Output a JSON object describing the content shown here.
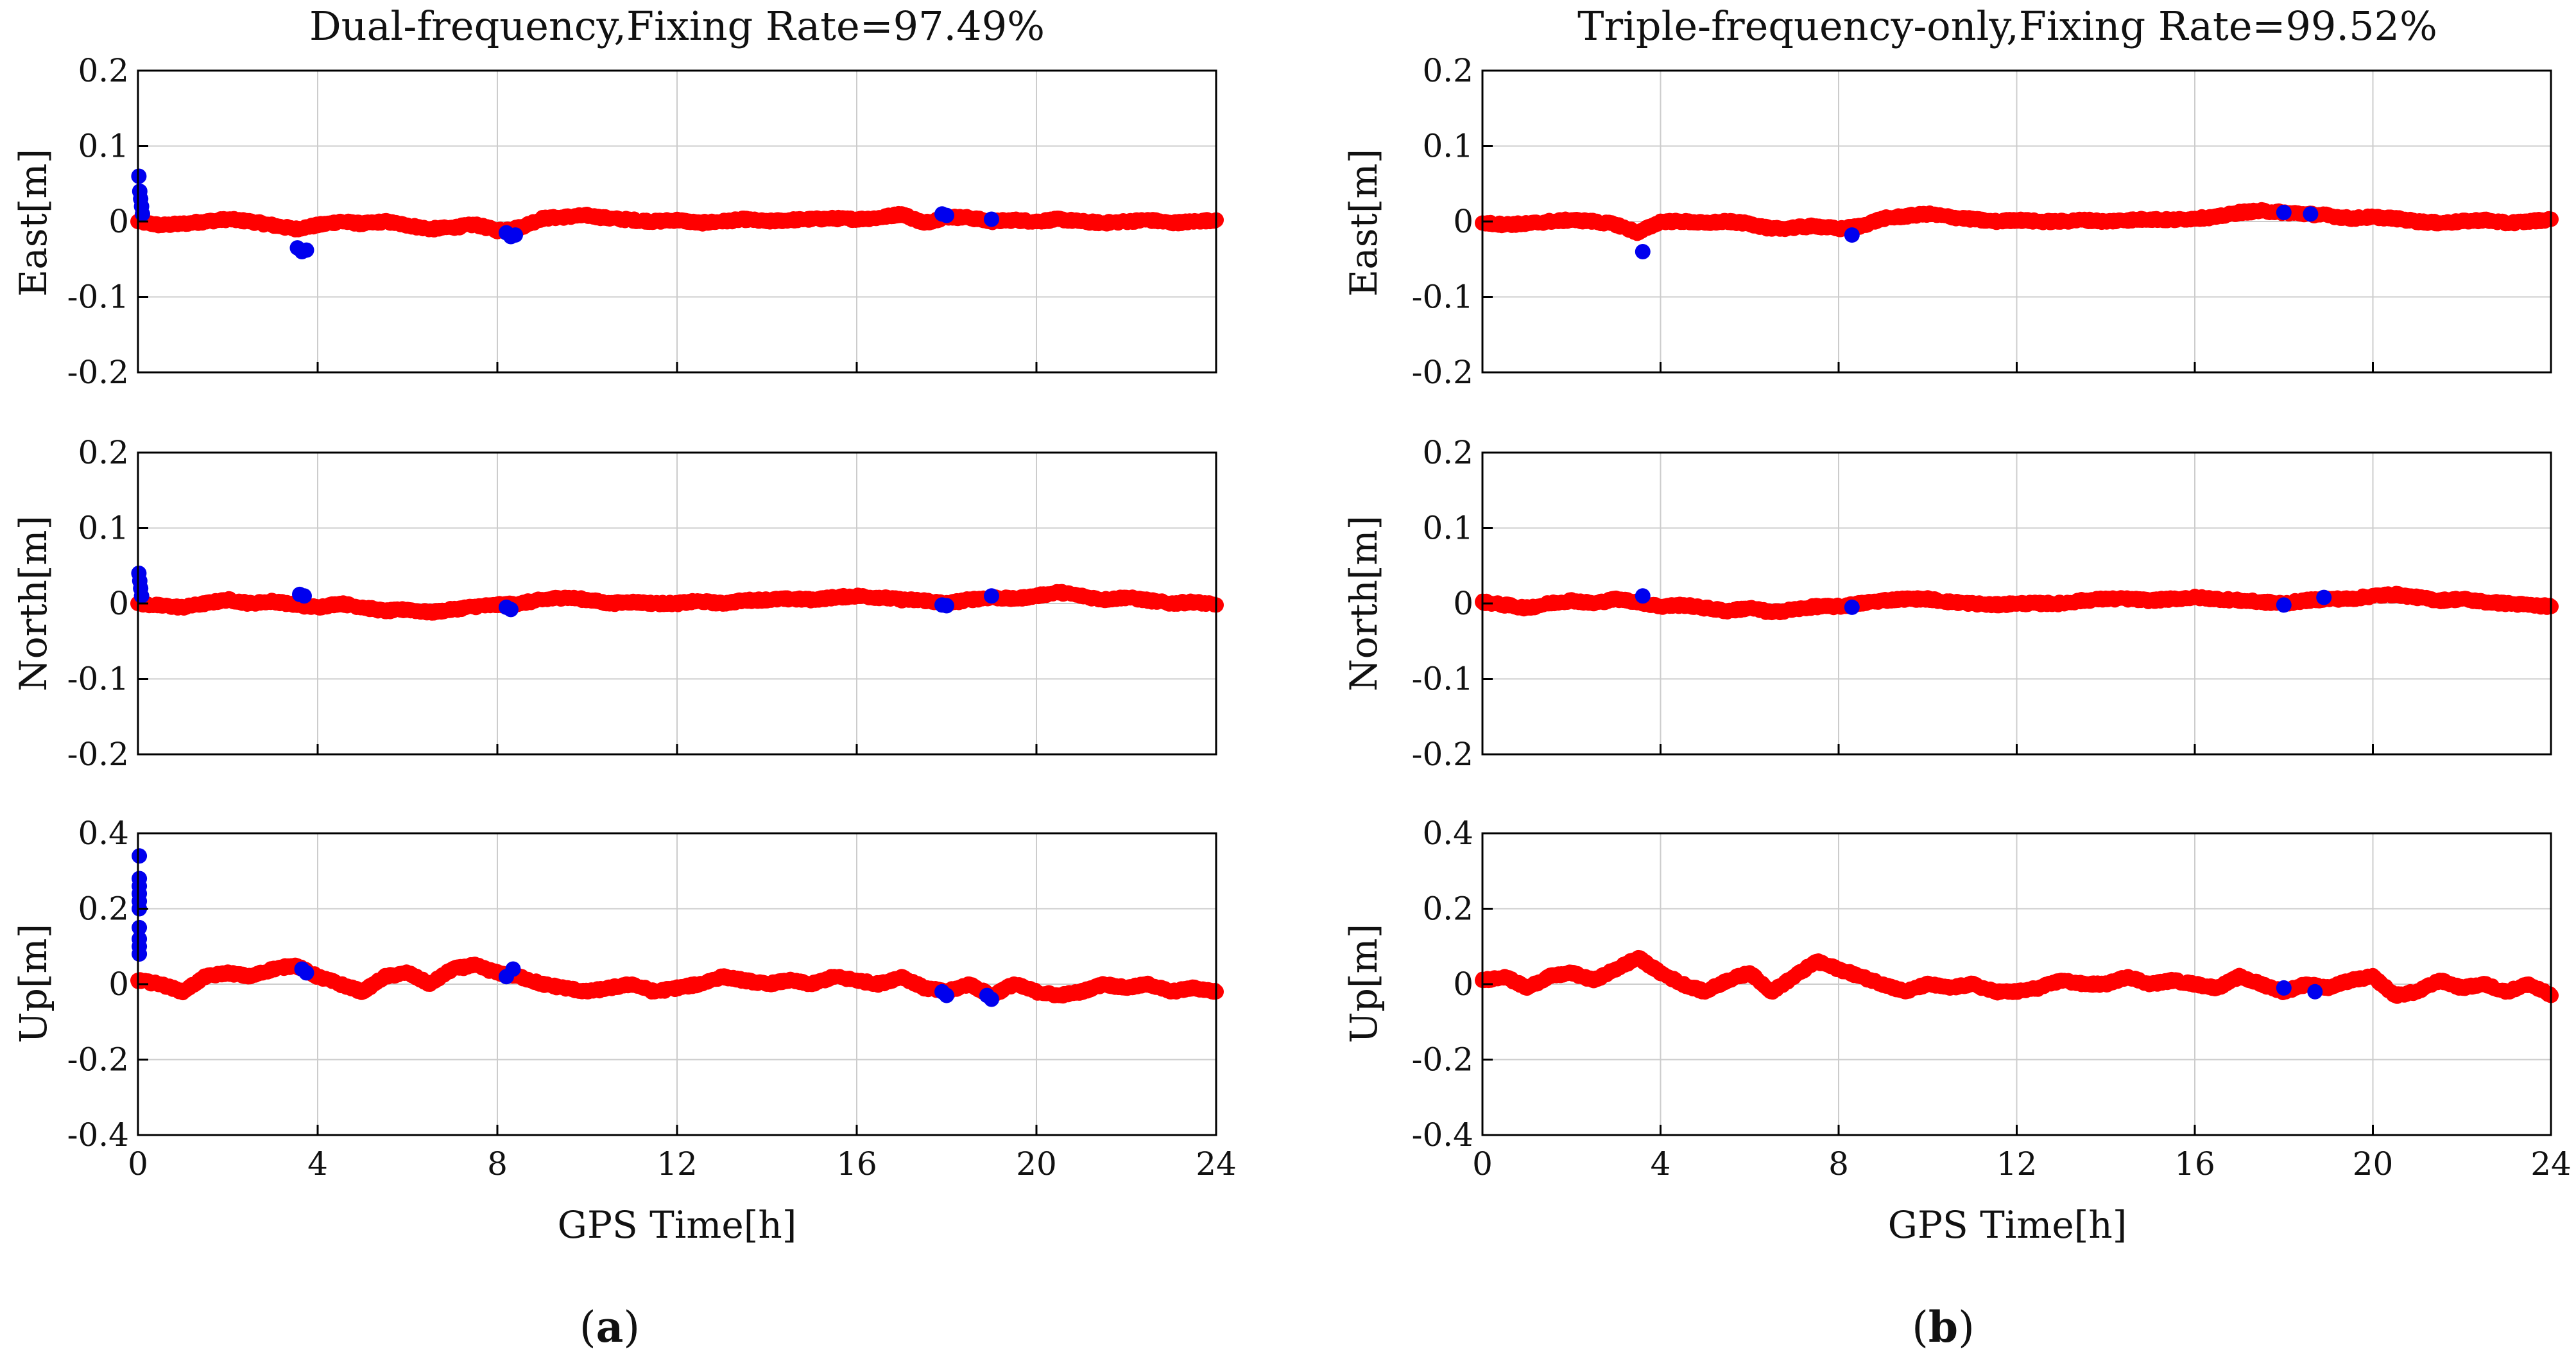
{
  "colors": {
    "fixed": "#ff0000",
    "float": "#0000ee",
    "grid": "#cccccc",
    "axis": "#000000"
  },
  "panels": [
    {
      "title": "Dual-frequency,Fixing Rate=97.49%",
      "label_prefix": "(",
      "label_letter": "a",
      "label_suffix": ")",
      "xlabel": "GPS Time[h]",
      "xticks": [
        "0",
        "4",
        "8",
        "12",
        "16",
        "20",
        "24"
      ]
    },
    {
      "title": "Triple-frequency-only,Fixing Rate=99.52%",
      "label_prefix": "(",
      "label_letter": "b",
      "label_suffix": ")",
      "xlabel": "GPS Time[h]",
      "xticks": [
        "0",
        "4",
        "8",
        "12",
        "16",
        "20",
        "24"
      ]
    }
  ],
  "rows": [
    {
      "ylabel": "East[m]",
      "yticks": [
        "0.2",
        "0.1",
        "0",
        "-0.1",
        "-0.2"
      ]
    },
    {
      "ylabel": "North[m]",
      "yticks": [
        "0.2",
        "0.1",
        "0",
        "-0.1",
        "-0.2"
      ]
    },
    {
      "ylabel": "Up[m]",
      "yticks": [
        "0.4",
        "0.2",
        "0",
        "-0.2",
        "-0.4"
      ]
    }
  ],
  "chart_data": [
    {
      "type": "scatter",
      "title": "Dual-frequency,Fixing Rate=97.49%",
      "xlabel": "GPS Time[h]",
      "ylabel": "East[m]",
      "xlim": [
        0,
        24
      ],
      "ylim": [
        -0.2,
        0.2
      ],
      "grid": true,
      "fixing_rate": "97.49%",
      "series": [
        {
          "name": "fixed",
          "color": "#ff0000",
          "x": [
            0.0,
            0.5,
            1.0,
            1.5,
            2.0,
            2.5,
            3.0,
            3.5,
            4.0,
            4.5,
            5.0,
            5.5,
            6.0,
            6.5,
            7.0,
            7.5,
            8.0,
            8.5,
            9.0,
            9.5,
            10.0,
            10.5,
            11.0,
            11.5,
            12.0,
            12.5,
            13.0,
            13.5,
            14.0,
            14.5,
            15.0,
            15.5,
            16.0,
            16.5,
            17.0,
            17.5,
            18.0,
            18.5,
            19.0,
            19.5,
            20.0,
            20.5,
            21.0,
            21.5,
            22.0,
            22.5,
            23.0,
            23.5,
            24.0
          ],
          "y": [
            0.0,
            -0.005,
            -0.003,
            0.0,
            0.003,
            0.0,
            -0.005,
            -0.01,
            -0.005,
            0.0,
            -0.003,
            0.0,
            -0.005,
            -0.01,
            -0.008,
            -0.004,
            -0.012,
            -0.008,
            0.004,
            0.006,
            0.008,
            0.004,
            0.002,
            0.0,
            0.002,
            -0.002,
            0.0,
            0.003,
            0.0,
            0.002,
            0.003,
            0.004,
            0.003,
            0.005,
            0.01,
            -0.002,
            0.006,
            0.005,
            0.0,
            0.002,
            0.0,
            0.003,
            0.0,
            -0.002,
            0.0,
            0.002,
            -0.002,
            0.0,
            0.002
          ]
        },
        {
          "name": "float",
          "color": "#0000ee",
          "x": [
            0.02,
            0.04,
            0.06,
            0.08,
            0.1,
            3.55,
            3.65,
            3.75,
            8.2,
            8.3,
            8.4,
            17.9,
            18.0,
            19.0
          ],
          "y": [
            0.06,
            0.04,
            0.03,
            0.02,
            0.01,
            -0.035,
            -0.04,
            -0.038,
            -0.015,
            -0.02,
            -0.018,
            0.01,
            0.008,
            0.003
          ]
        }
      ]
    },
    {
      "type": "scatter",
      "title": "Dual-frequency,Fixing Rate=97.49%",
      "xlabel": "GPS Time[h]",
      "ylabel": "North[m]",
      "xlim": [
        0,
        24
      ],
      "ylim": [
        -0.2,
        0.2
      ],
      "grid": true,
      "fixing_rate": "97.49%",
      "series": [
        {
          "name": "fixed",
          "color": "#ff0000",
          "x": [
            0.0,
            0.5,
            1.0,
            1.5,
            2.0,
            2.5,
            3.0,
            3.5,
            4.0,
            4.5,
            5.0,
            5.5,
            6.0,
            6.5,
            7.0,
            7.5,
            8.0,
            8.5,
            9.0,
            9.5,
            10.0,
            10.5,
            11.0,
            11.5,
            12.0,
            12.5,
            13.0,
            13.5,
            14.0,
            14.5,
            15.0,
            15.5,
            16.0,
            16.5,
            17.0,
            17.5,
            18.0,
            18.5,
            19.0,
            19.5,
            20.0,
            20.5,
            21.0,
            21.5,
            22.0,
            22.5,
            23.0,
            23.5,
            24.0
          ],
          "y": [
            0.0,
            -0.003,
            -0.005,
            0.0,
            0.005,
            0.0,
            0.003,
            -0.002,
            -0.005,
            0.0,
            -0.005,
            -0.01,
            -0.008,
            -0.012,
            -0.008,
            -0.004,
            -0.002,
            0.0,
            0.005,
            0.008,
            0.005,
            0.0,
            0.002,
            0.0,
            0.0,
            0.003,
            0.0,
            0.004,
            0.005,
            0.006,
            0.005,
            0.008,
            0.01,
            0.008,
            0.005,
            0.004,
            0.0,
            0.005,
            0.008,
            0.006,
            0.01,
            0.015,
            0.01,
            0.005,
            0.008,
            0.004,
            0.0,
            0.002,
            -0.002
          ]
        },
        {
          "name": "float",
          "color": "#0000ee",
          "x": [
            0.02,
            0.04,
            0.06,
            0.08,
            3.6,
            3.7,
            8.2,
            8.3,
            17.9,
            18.0,
            19.0
          ],
          "y": [
            0.04,
            0.03,
            0.02,
            0.01,
            0.012,
            0.01,
            -0.005,
            -0.008,
            -0.002,
            -0.003,
            0.01
          ]
        }
      ]
    },
    {
      "type": "scatter",
      "title": "Dual-frequency,Fixing Rate=97.49%",
      "xlabel": "GPS Time[h]",
      "ylabel": "Up[m]",
      "xlim": [
        0,
        24
      ],
      "ylim": [
        -0.4,
        0.4
      ],
      "grid": true,
      "fixing_rate": "97.49%",
      "series": [
        {
          "name": "fixed",
          "color": "#ff0000",
          "x": [
            0.0,
            0.5,
            1.0,
            1.5,
            2.0,
            2.5,
            3.0,
            3.5,
            4.0,
            4.5,
            5.0,
            5.5,
            6.0,
            6.5,
            7.0,
            7.5,
            8.0,
            8.5,
            9.0,
            9.5,
            10.0,
            10.5,
            11.0,
            11.5,
            12.0,
            12.5,
            13.0,
            13.5,
            14.0,
            14.5,
            15.0,
            15.5,
            16.0,
            16.5,
            17.0,
            17.5,
            18.0,
            18.5,
            19.0,
            19.5,
            20.0,
            20.5,
            21.0,
            21.5,
            22.0,
            22.5,
            23.0,
            23.5,
            24.0
          ],
          "y": [
            0.01,
            0.0,
            -0.02,
            0.02,
            0.03,
            0.02,
            0.04,
            0.05,
            0.02,
            0.0,
            -0.02,
            0.02,
            0.03,
            0.0,
            0.04,
            0.05,
            0.03,
            0.02,
            0.0,
            -0.01,
            -0.02,
            -0.01,
            0.0,
            -0.02,
            -0.01,
            0.0,
            0.02,
            0.01,
            0.0,
            0.01,
            0.0,
            0.02,
            0.01,
            0.0,
            0.02,
            -0.01,
            -0.02,
            0.0,
            -0.03,
            0.0,
            -0.02,
            -0.03,
            -0.02,
            0.0,
            -0.01,
            0.0,
            -0.02,
            -0.01,
            -0.02
          ]
        },
        {
          "name": "float",
          "color": "#0000ee",
          "x": [
            0.03,
            0.03,
            0.03,
            0.03,
            0.03,
            0.03,
            0.03,
            0.03,
            0.03,
            0.03,
            3.65,
            3.75,
            8.2,
            8.35,
            17.9,
            18.0,
            18.9,
            19.0
          ],
          "y": [
            0.34,
            0.28,
            0.26,
            0.24,
            0.22,
            0.2,
            0.15,
            0.12,
            0.1,
            0.08,
            0.04,
            0.03,
            0.02,
            0.04,
            -0.02,
            -0.03,
            -0.03,
            -0.04
          ]
        }
      ]
    },
    {
      "type": "scatter",
      "title": "Triple-frequency-only,Fixing Rate=99.52%",
      "xlabel": "GPS Time[h]",
      "ylabel": "East[m]",
      "xlim": [
        0,
        24
      ],
      "ylim": [
        -0.2,
        0.2
      ],
      "grid": true,
      "fixing_rate": "99.52%",
      "series": [
        {
          "name": "fixed",
          "color": "#ff0000",
          "x": [
            0.0,
            0.5,
            1.0,
            1.5,
            2.0,
            2.5,
            3.0,
            3.5,
            4.0,
            4.5,
            5.0,
            5.5,
            6.0,
            6.5,
            7.0,
            7.5,
            8.0,
            8.5,
            9.0,
            9.5,
            10.0,
            10.5,
            11.0,
            11.5,
            12.0,
            12.5,
            13.0,
            13.5,
            14.0,
            14.5,
            15.0,
            15.5,
            16.0,
            16.5,
            17.0,
            17.5,
            18.0,
            18.5,
            19.0,
            19.5,
            20.0,
            20.5,
            21.0,
            21.5,
            22.0,
            22.5,
            23.0,
            23.5,
            24.0
          ],
          "y": [
            -0.002,
            -0.004,
            -0.003,
            0.0,
            0.002,
            0.0,
            -0.004,
            -0.015,
            0.0,
            0.0,
            -0.002,
            0.0,
            -0.003,
            -0.01,
            -0.008,
            -0.006,
            -0.01,
            -0.006,
            0.004,
            0.007,
            0.01,
            0.006,
            0.003,
            0.0,
            0.002,
            0.0,
            0.0,
            0.002,
            0.0,
            0.002,
            0.003,
            0.002,
            0.004,
            0.006,
            0.012,
            0.014,
            0.012,
            0.01,
            0.008,
            0.004,
            0.006,
            0.004,
            0.0,
            -0.002,
            0.0,
            0.002,
            -0.002,
            0.0,
            0.003
          ]
        },
        {
          "name": "float",
          "color": "#0000ee",
          "x": [
            3.6,
            8.3,
            18.0,
            18.6
          ],
          "y": [
            -0.04,
            -0.018,
            0.012,
            0.01
          ]
        }
      ]
    },
    {
      "type": "scatter",
      "title": "Triple-frequency-only,Fixing Rate=99.52%",
      "xlabel": "GPS Time[h]",
      "ylabel": "North[m]",
      "xlim": [
        0,
        24
      ],
      "ylim": [
        -0.2,
        0.2
      ],
      "grid": true,
      "fixing_rate": "99.52%",
      "series": [
        {
          "name": "fixed",
          "color": "#ff0000",
          "x": [
            0.0,
            0.5,
            1.0,
            1.5,
            2.0,
            2.5,
            3.0,
            3.5,
            4.0,
            4.5,
            5.0,
            5.5,
            6.0,
            6.5,
            7.0,
            7.5,
            8.0,
            8.5,
            9.0,
            9.5,
            10.0,
            10.5,
            11.0,
            11.5,
            12.0,
            12.5,
            13.0,
            13.5,
            14.0,
            14.5,
            15.0,
            15.5,
            16.0,
            16.5,
            17.0,
            17.5,
            18.0,
            18.5,
            19.0,
            19.5,
            20.0,
            20.5,
            21.0,
            21.5,
            22.0,
            22.5,
            23.0,
            23.5,
            24.0
          ],
          "y": [
            0.002,
            -0.002,
            -0.006,
            0.0,
            0.004,
            0.0,
            0.006,
            0.002,
            -0.004,
            -0.002,
            -0.006,
            -0.01,
            -0.006,
            -0.012,
            -0.008,
            -0.004,
            -0.004,
            0.0,
            0.004,
            0.006,
            0.006,
            0.002,
            0.0,
            -0.002,
            0.0,
            0.0,
            0.0,
            0.004,
            0.006,
            0.006,
            0.004,
            0.006,
            0.008,
            0.006,
            0.004,
            0.002,
            0.0,
            0.004,
            0.006,
            0.006,
            0.01,
            0.012,
            0.008,
            0.004,
            0.006,
            0.002,
            0.0,
            -0.002,
            -0.004
          ]
        },
        {
          "name": "float",
          "color": "#0000ee",
          "x": [
            3.6,
            8.3,
            18.0,
            18.9
          ],
          "y": [
            0.01,
            -0.005,
            -0.002,
            0.008
          ]
        }
      ]
    },
    {
      "type": "scatter",
      "title": "Triple-frequency-only,Fixing Rate=99.52%",
      "xlabel": "GPS Time[h]",
      "ylabel": "Up[m]",
      "xlim": [
        0,
        24
      ],
      "ylim": [
        -0.4,
        0.4
      ],
      "grid": true,
      "fixing_rate": "99.52%",
      "series": [
        {
          "name": "fixed",
          "color": "#ff0000",
          "x": [
            0.0,
            0.5,
            1.0,
            1.5,
            2.0,
            2.5,
            3.0,
            3.5,
            4.0,
            4.5,
            5.0,
            5.5,
            6.0,
            6.5,
            7.0,
            7.5,
            8.0,
            8.5,
            9.0,
            9.5,
            10.0,
            10.5,
            11.0,
            11.5,
            12.0,
            12.5,
            13.0,
            13.5,
            14.0,
            14.5,
            15.0,
            15.5,
            16.0,
            16.5,
            17.0,
            17.5,
            18.0,
            18.5,
            19.0,
            19.5,
            20.0,
            20.5,
            21.0,
            21.5,
            22.0,
            22.5,
            23.0,
            23.5,
            24.0
          ],
          "y": [
            0.01,
            0.02,
            -0.01,
            0.02,
            0.03,
            0.01,
            0.04,
            0.07,
            0.03,
            0.0,
            -0.02,
            0.01,
            0.03,
            -0.02,
            0.02,
            0.06,
            0.04,
            0.02,
            0.0,
            -0.02,
            0.0,
            -0.01,
            0.0,
            -0.02,
            -0.02,
            -0.01,
            0.01,
            0.0,
            0.0,
            0.02,
            0.0,
            0.01,
            0.0,
            -0.01,
            0.02,
            0.0,
            -0.02,
            0.0,
            -0.01,
            0.01,
            0.02,
            -0.03,
            -0.02,
            0.01,
            -0.01,
            0.0,
            -0.02,
            0.0,
            -0.03
          ]
        },
        {
          "name": "float",
          "color": "#0000ee",
          "x": [
            18.0,
            18.7
          ],
          "y": [
            -0.01,
            -0.02
          ]
        }
      ]
    }
  ]
}
